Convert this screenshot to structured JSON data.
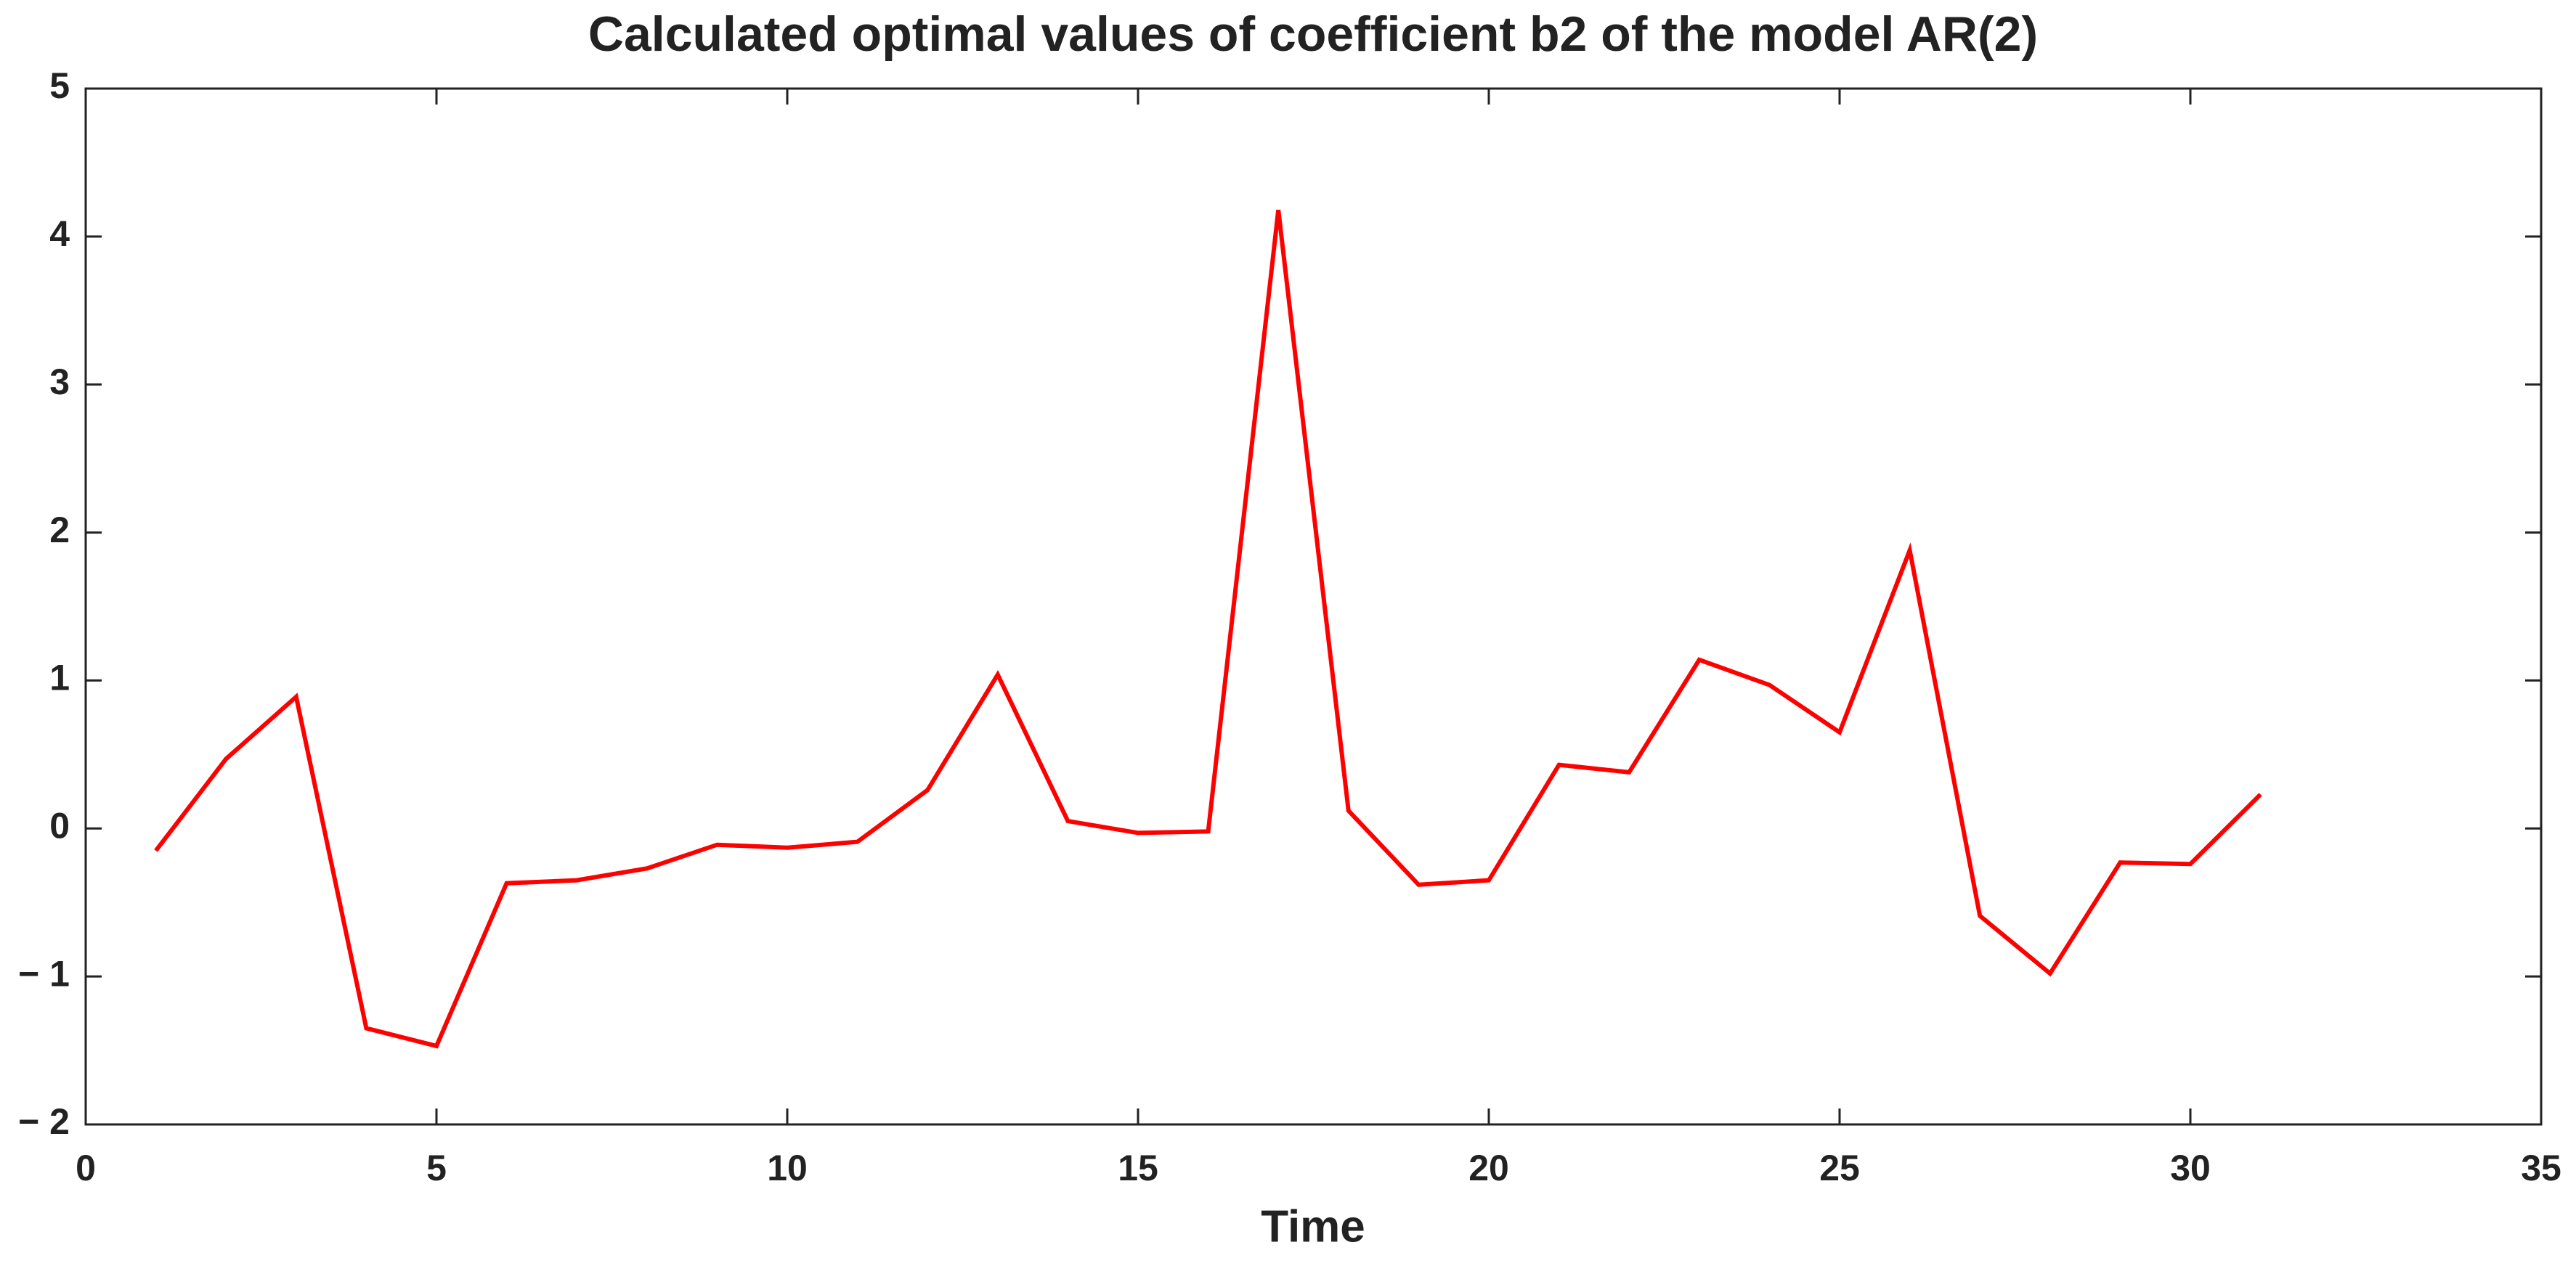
{
  "chart_data": {
    "type": "line",
    "title": "Calculated optimal values of coefficient b2 of the model AR(2)",
    "x_label": "Time",
    "x": [
      1,
      2,
      3,
      4,
      5,
      6,
      7,
      8,
      9,
      10,
      11,
      12,
      13,
      14,
      15,
      16,
      17,
      18,
      19,
      20,
      21,
      22,
      23,
      24,
      25,
      26,
      27,
      28,
      29,
      30,
      31
    ],
    "series": [
      {
        "color": "#ff0000",
        "values": [
          -0.15,
          0.47,
          0.89,
          -1.35,
          -1.47,
          -0.37,
          -0.35,
          -0.27,
          -0.11,
          -0.13,
          -0.09,
          0.26,
          1.04,
          0.05,
          -0.03,
          -0.02,
          4.18,
          0.12,
          -0.38,
          -0.35,
          0.43,
          0.38,
          1.14,
          0.97,
          0.65,
          1.88,
          -0.59,
          -0.98,
          -0.23,
          -0.24,
          0.23
        ]
      }
    ],
    "xlim": [
      0,
      35
    ],
    "xticks": [
      0,
      5,
      10,
      15,
      20,
      25,
      30,
      35
    ],
    "ylim": [
      -2,
      5
    ],
    "yticks": [
      {
        "value": -2,
        "label": "− 2"
      },
      {
        "value": -1,
        "label": "− 1"
      },
      0,
      1,
      2,
      3,
      4,
      5
    ],
    "grid": false
  }
}
